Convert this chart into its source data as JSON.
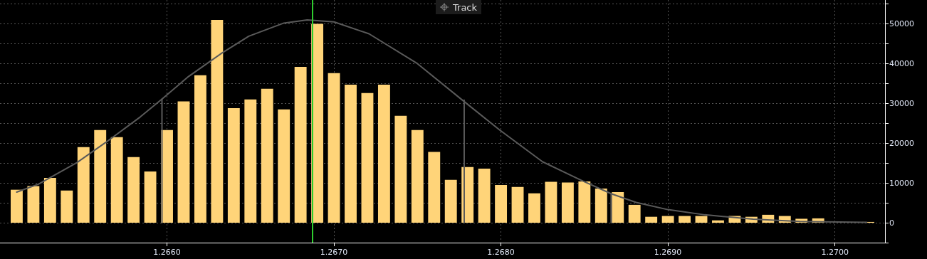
{
  "chart_data": {
    "type": "histogram",
    "annotations": [
      "Track"
    ],
    "bins": [
      1.26505,
      1.26515,
      1.26525,
      1.26535,
      1.26545,
      1.26555,
      1.26565,
      1.26575,
      1.26585,
      1.26595,
      1.26605,
      1.26615,
      1.26625,
      1.26635,
      1.26645,
      1.26655,
      1.26665,
      1.26675,
      1.26685,
      1.26695,
      1.26705,
      1.26715,
      1.26725,
      1.26735,
      1.26745,
      1.26755,
      1.26765,
      1.26775,
      1.26785,
      1.26795,
      1.26805,
      1.26815,
      1.26825,
      1.26835,
      1.26845,
      1.26855,
      1.26865,
      1.26875,
      1.26885,
      1.26895,
      1.26905,
      1.26915,
      1.26925,
      1.26935,
      1.26945,
      1.26955,
      1.26965,
      1.26975,
      1.26985,
      1.26995,
      1.27005,
      1.27015,
      1.27025
    ],
    "series": [
      {
        "type": "histogram",
        "color": "#ffd479",
        "values": [
          8300,
          9200,
          11300,
          8100,
          19000,
          23300,
          21500,
          16500,
          12900,
          23300,
          30500,
          37100,
          51000,
          28800,
          31000,
          33700,
          28500,
          39200,
          50000,
          37600,
          34700,
          32600,
          34700,
          26900,
          23300,
          17800,
          10800,
          14000,
          13600,
          9500,
          9000,
          7400,
          10300,
          10100,
          10400,
          8600,
          7700,
          4500,
          1500,
          1700,
          1700,
          1700,
          600,
          1700,
          1500,
          2000,
          1700,
          1000,
          1100,
          0,
          0,
          200
        ]
      },
      {
        "type": "line",
        "color": "#5a5a5a",
        "x": [
          1.2651,
          1.26523,
          1.26546,
          1.26563,
          1.26584,
          1.26597,
          1.26613,
          1.26633,
          1.26649,
          1.2667,
          1.26684,
          1.267,
          1.26721,
          1.2675,
          1.26777,
          1.26799,
          1.26825,
          1.26849,
          1.26866,
          1.26881,
          1.269,
          1.26922,
          1.26951,
          1.26979,
          1.27019
        ],
        "values": [
          7700,
          9700,
          15100,
          20100,
          26600,
          31100,
          36800,
          42700,
          46900,
          50200,
          51000,
          50500,
          47500,
          40000,
          30800,
          23400,
          15300,
          10500,
          7300,
          5100,
          3300,
          2000,
          900,
          300,
          100
        ]
      },
      {
        "type": "line",
        "color": "#5a5a5a",
        "x": [
          1.26597,
          1.26597
        ],
        "values": [
          0,
          31100
        ]
      },
      {
        "type": "line",
        "color": "#5a5a5a",
        "x": [
          1.26778,
          1.26778
        ],
        "values": [
          0,
          30800
        ]
      },
      {
        "type": "line",
        "color": "#5a5a5a",
        "x": [
          1.26866,
          1.26866
        ],
        "values": [
          0,
          7300
        ]
      }
    ],
    "ref_lines": [
      {
        "axis": "x",
        "value": 1.26687,
        "color": "#2ecc2e"
      }
    ],
    "marker": "none",
    "grid": true,
    "xlim": [
      1.265,
      1.2703
    ],
    "xticks": [
      {
        "value": 1.266,
        "label": "1.2660"
      },
      {
        "value": 1.267,
        "label": "1.2670"
      },
      {
        "value": 1.268,
        "label": "1.2680"
      },
      {
        "value": 1.269,
        "label": "1.2690"
      },
      {
        "value": 1.27,
        "label": "1.2700"
      }
    ],
    "ylim": [
      -5000,
      56000
    ],
    "yticks": [
      {
        "value": -5000,
        "label": null
      },
      0,
      {
        "value": 5000,
        "label": null
      },
      10000,
      {
        "value": 15000,
        "label": null
      },
      20000,
      {
        "value": 25000,
        "label": null
      },
      30000,
      {
        "value": 35000,
        "label": null
      },
      40000,
      {
        "value": 45000,
        "label": null
      },
      50000,
      {
        "value": 55000,
        "label": null
      }
    ]
  }
}
